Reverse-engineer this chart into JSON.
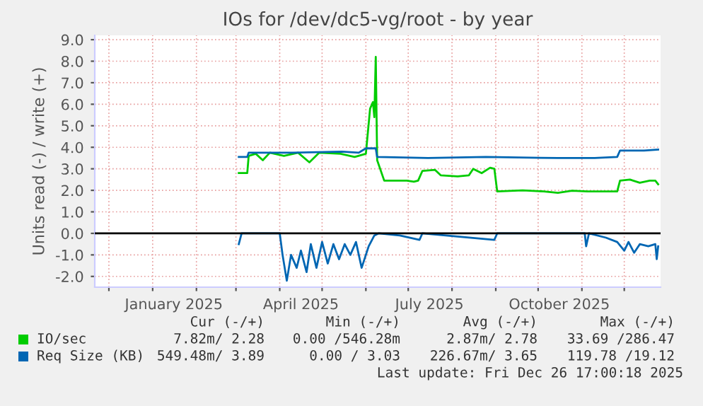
{
  "chart_data": {
    "type": "line",
    "title": "IOs for /dev/dc5-vg/root - by year",
    "ylabel": "Units read (-) / write (+)",
    "xlim": [
      "2024-11-21T00:00",
      "2025-12-26T17:00"
    ],
    "xticks": [
      {
        "value": "2024-12-01",
        "label": null
      },
      {
        "value": "2025-01-01",
        "label": null
      },
      {
        "value": "2025-01-16",
        "label": "January 2025"
      },
      {
        "value": "2025-02-01",
        "label": null
      },
      {
        "value": "2025-03-01",
        "label": null
      },
      {
        "value": "2025-04-01",
        "label": null
      },
      {
        "value": "2025-04-16",
        "label": "April 2025"
      },
      {
        "value": "2025-05-01",
        "label": null
      },
      {
        "value": "2025-06-01",
        "label": null
      },
      {
        "value": "2025-07-01",
        "label": null
      },
      {
        "value": "2025-07-16",
        "label": "July 2025"
      },
      {
        "value": "2025-08-01",
        "label": null
      },
      {
        "value": "2025-09-01",
        "label": null
      },
      {
        "value": "2025-10-01",
        "label": null
      },
      {
        "value": "2025-10-16",
        "label": "October 2025"
      },
      {
        "value": "2025-11-01",
        "label": null
      },
      {
        "value": "2025-12-01",
        "label": null
      }
    ],
    "ylim": [
      -2.5,
      9.2
    ],
    "yticks": [
      {
        "value": -2,
        "label": "-2.0"
      },
      {
        "value": -1,
        "label": "-1.0"
      },
      {
        "value": 0,
        "label": "0.0"
      },
      {
        "value": 1,
        "label": "1.0"
      },
      {
        "value": 2,
        "label": "2.0"
      },
      {
        "value": 3,
        "label": "3.0"
      },
      {
        "value": 4,
        "label": "4.0"
      },
      {
        "value": 5,
        "label": "5.0"
      },
      {
        "value": 6,
        "label": "6.0"
      },
      {
        "value": 7,
        "label": "7.0"
      },
      {
        "value": 8,
        "label": "8.0"
      },
      {
        "value": 9,
        "label": "9.0"
      }
    ],
    "ref_lines": [
      {
        "axis": "y",
        "value": 0,
        "color": "#000000"
      }
    ],
    "grid": true,
    "legend": "bottom",
    "marker": "none",
    "line_style": "solid",
    "series": [
      {
        "name": "IO/sec",
        "color": "#00cc00",
        "x": [
          "2025-03-03",
          "2025-03-09",
          "2025-03-10",
          "2025-03-15",
          "2025-03-20",
          "2025-03-25",
          "2025-04-04",
          "2025-04-14",
          "2025-04-22",
          "2025-04-29",
          "2025-05-14",
          "2025-05-24",
          "2025-06-01",
          "2025-06-04",
          "2025-06-06",
          "2025-06-07",
          "2025-06-08",
          "2025-06-09",
          "2025-06-14",
          "2025-06-30",
          "2025-07-05",
          "2025-07-08",
          "2025-07-11",
          "2025-07-20",
          "2025-07-24",
          "2025-08-05",
          "2025-08-13",
          "2025-08-16",
          "2025-08-22",
          "2025-08-28",
          "2025-08-31",
          "2025-09-02",
          "2025-09-20",
          "2025-10-05",
          "2025-10-15",
          "2025-10-25",
          "2025-11-05",
          "2025-11-20",
          "2025-11-26",
          "2025-11-28",
          "2025-12-05",
          "2025-12-12",
          "2025-12-19",
          "2025-12-23",
          "2025-12-25"
        ],
        "values": [
          2.8,
          2.8,
          3.6,
          3.7,
          3.4,
          3.75,
          3.6,
          3.75,
          3.3,
          3.75,
          3.7,
          3.55,
          3.7,
          5.8,
          6.1,
          5.4,
          8.2,
          3.4,
          2.45,
          2.45,
          2.4,
          2.45,
          2.9,
          2.95,
          2.7,
          2.65,
          2.7,
          3.0,
          2.8,
          3.05,
          3.0,
          1.95,
          2.0,
          1.95,
          1.88,
          1.98,
          1.95,
          1.95,
          1.95,
          2.45,
          2.5,
          2.35,
          2.45,
          2.45,
          2.28
        ]
      },
      {
        "name": "Req Size (KB)",
        "color": "#0066b3",
        "x": [
          "2025-03-03",
          "2025-03-09",
          "2025-03-10",
          "2025-04-10",
          "2025-05-15",
          "2025-05-27",
          "2025-06-01",
          "2025-06-08",
          "2025-06-09",
          "2025-07-15",
          "2025-08-25",
          "2025-10-15",
          "2025-11-10",
          "2025-11-26",
          "2025-11-28",
          "2025-12-15",
          "2025-12-25"
        ],
        "values": [
          3.55,
          3.55,
          3.75,
          3.75,
          3.8,
          3.75,
          3.95,
          3.95,
          3.55,
          3.5,
          3.55,
          3.5,
          3.5,
          3.55,
          3.85,
          3.85,
          3.89
        ]
      },
      {
        "color": "#0066b3",
        "x": [
          "2025-03-03",
          "2025-03-05",
          "2025-04-01",
          "2025-04-03",
          "2025-04-06",
          "2025-04-09",
          "2025-04-13",
          "2025-04-16",
          "2025-04-20",
          "2025-04-23",
          "2025-04-27",
          "2025-05-01",
          "2025-05-05",
          "2025-05-09",
          "2025-05-13",
          "2025-05-17",
          "2025-05-21",
          "2025-05-25",
          "2025-05-29",
          "2025-06-03",
          "2025-06-07",
          "2025-06-10",
          "2025-06-25",
          "2025-07-09",
          "2025-07-11",
          "2025-08-31",
          "2025-09-02",
          "2025-11-03",
          "2025-11-04",
          "2025-11-06",
          "2025-11-18",
          "2025-11-26",
          "2025-12-01",
          "2025-12-04",
          "2025-12-08",
          "2025-12-12",
          "2025-12-18",
          "2025-12-23",
          "2025-12-24",
          "2025-12-25"
        ],
        "values": [
          -0.5,
          0,
          0,
          -1.0,
          -2.2,
          -1.0,
          -1.6,
          -0.8,
          -1.8,
          -0.5,
          -1.6,
          -0.4,
          -1.4,
          -0.5,
          -1.2,
          -0.5,
          -1.0,
          -0.4,
          -1.6,
          -0.6,
          -0.1,
          0,
          -0.1,
          -0.3,
          0,
          -0.3,
          0,
          0,
          -0.6,
          0,
          -0.2,
          -0.4,
          -0.8,
          -0.4,
          -0.9,
          -0.5,
          -0.6,
          -0.5,
          -1.2,
          -0.6
        ]
      }
    ],
    "annotations": [
      "Cur (-/+)",
      "Min (-/+)",
      "Avg (-/+)",
      "Max (-/+)",
      "7.82m/ 2.28",
      "0.00 /546.28m",
      "2.87m/ 2.78",
      "33.69 /286.47",
      "549.48m/ 3.89",
      "0.00 / 3.03",
      "226.67m/ 3.65",
      "119.78 /19.12",
      "Last update: Fri Dec 26 17:00:18 2025"
    ]
  }
}
